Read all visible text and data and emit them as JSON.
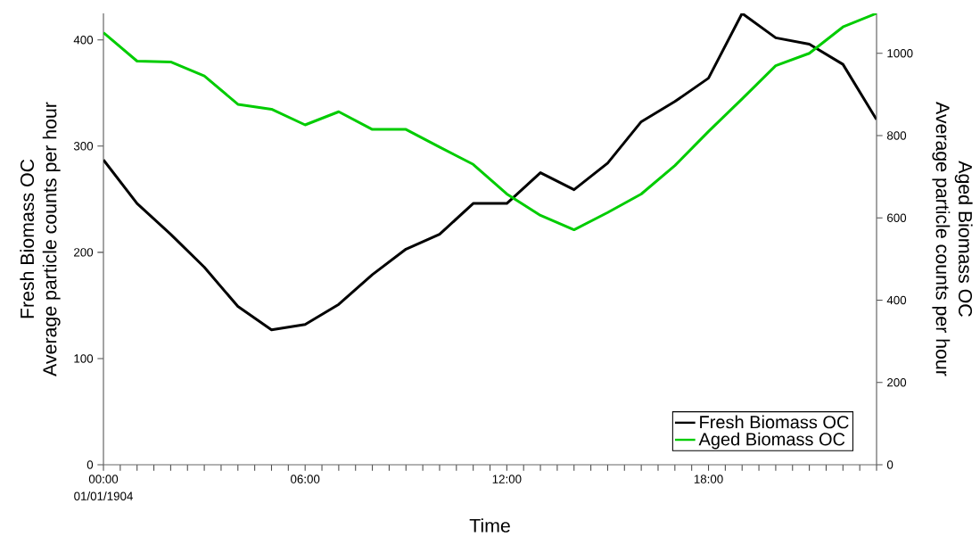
{
  "chart_data": {
    "type": "line",
    "xlabel": "Time",
    "ylabel": "Fresh Biomass OC Average particle counts per hour",
    "y2label": "Aged Biomass OC Average particle counts per hour",
    "x": [
      0,
      1,
      2,
      3,
      4,
      5,
      6,
      7,
      8,
      9,
      10,
      11,
      12,
      13,
      14,
      15,
      16,
      17,
      18,
      19,
      20,
      21,
      22,
      23
    ],
    "series": [
      {
        "name": "Fresh Biomass OC",
        "color": "#000000",
        "values": [
          287,
          246,
          217,
          186,
          149,
          127,
          132,
          151,
          179,
          203,
          217,
          246,
          246,
          275,
          259,
          284,
          323,
          342,
          364,
          425,
          402,
          396,
          377,
          325
        ]
      },
      {
        "name": "Aged Biomass OC",
        "color": "#00cc00",
        "axis": "y2",
        "values": [
          1050,
          981,
          979,
          945,
          876,
          864,
          826,
          858,
          815,
          815,
          772,
          730,
          658,
          606,
          571,
          613,
          658,
          727,
          810,
          889,
          970,
          1000,
          1064,
          1097
        ]
      }
    ],
    "xlim": [
      0,
      23
    ],
    "ylim": [
      0,
      425
    ],
    "y2lim": [
      0,
      1097
    ],
    "xticks": [
      {
        "value": 0,
        "label": "00:00"
      },
      {
        "value": 0.5,
        "label": null
      },
      {
        "value": 1,
        "label": null
      },
      {
        "value": 1.5,
        "label": null
      },
      {
        "value": 2,
        "label": null
      },
      {
        "value": 2.5,
        "label": null
      },
      {
        "value": 3,
        "label": null
      },
      {
        "value": 3.5,
        "label": null
      },
      {
        "value": 4,
        "label": null
      },
      {
        "value": 4.5,
        "label": null
      },
      {
        "value": 5,
        "label": null
      },
      {
        "value": 5.5,
        "label": null
      },
      {
        "value": 6,
        "label": "06:00"
      },
      {
        "value": 6.5,
        "label": null
      },
      {
        "value": 7,
        "label": null
      },
      {
        "value": 7.5,
        "label": null
      },
      {
        "value": 8,
        "label": null
      },
      {
        "value": 8.5,
        "label": null
      },
      {
        "value": 9,
        "label": null
      },
      {
        "value": 9.5,
        "label": null
      },
      {
        "value": 10,
        "label": null
      },
      {
        "value": 10.5,
        "label": null
      },
      {
        "value": 11,
        "label": null
      },
      {
        "value": 11.5,
        "label": null
      },
      {
        "value": 12,
        "label": "12:00"
      },
      {
        "value": 12.5,
        "label": null
      },
      {
        "value": 13,
        "label": null
      },
      {
        "value": 13.5,
        "label": null
      },
      {
        "value": 14,
        "label": null
      },
      {
        "value": 14.5,
        "label": null
      },
      {
        "value": 15,
        "label": null
      },
      {
        "value": 15.5,
        "label": null
      },
      {
        "value": 16,
        "label": null
      },
      {
        "value": 16.5,
        "label": null
      },
      {
        "value": 17,
        "label": null
      },
      {
        "value": 17.5,
        "label": null
      },
      {
        "value": 18,
        "label": "18:00"
      },
      {
        "value": 18.5,
        "label": null
      },
      {
        "value": 19,
        "label": null
      },
      {
        "value": 19.5,
        "label": null
      },
      {
        "value": 20,
        "label": null
      },
      {
        "value": 20.5,
        "label": null
      },
      {
        "value": 21,
        "label": null
      },
      {
        "value": 21.5,
        "label": null
      },
      {
        "value": 22,
        "label": null
      },
      {
        "value": 22.5,
        "label": null
      },
      {
        "value": 23,
        "label": null
      }
    ],
    "yticks": [
      0,
      100,
      200,
      300,
      400
    ],
    "y2ticks": [
      0,
      200,
      400,
      600,
      800,
      1000
    ],
    "annotations": [
      "01/01/1904"
    ],
    "legend": "bottom right",
    "grid": false,
    "marker": "none",
    "line_style": "solid"
  }
}
